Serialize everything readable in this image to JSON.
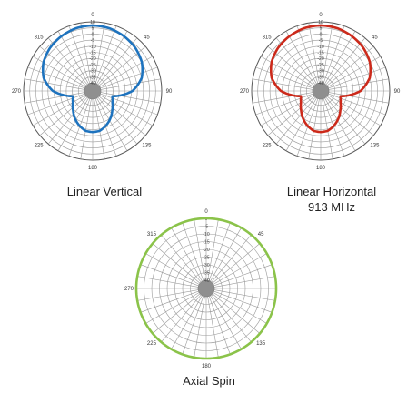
{
  "chart_data": [
    {
      "type": "polar-line",
      "title": "Linear Vertical",
      "subtitle": "",
      "series_color": "#1e73be",
      "radial_axis": {
        "ticks": [
          10,
          5,
          0,
          -5,
          -10,
          -15,
          -20,
          -25,
          -30,
          -35,
          -40
        ],
        "range": [
          -40,
          10
        ],
        "direction": "outer-to-inner"
      },
      "angular_axis": {
        "labels": [
          {
            "angle": 0,
            "label": "0"
          },
          {
            "angle": 45,
            "label": "45"
          },
          {
            "angle": 90,
            "label": "90"
          },
          {
            "angle": 135,
            "label": "135"
          },
          {
            "angle": 180,
            "label": "180"
          },
          {
            "angle": 225,
            "label": "225"
          },
          {
            "angle": 270,
            "label": "270"
          },
          {
            "angle": 315,
            "label": "315"
          }
        ]
      },
      "pattern": [
        [
          0,
          7
        ],
        [
          15,
          6.5
        ],
        [
          30,
          5
        ],
        [
          45,
          3
        ],
        [
          60,
          0
        ],
        [
          75,
          -5
        ],
        [
          90,
          -14
        ],
        [
          105,
          -30
        ],
        [
          120,
          -28
        ],
        [
          135,
          -24
        ],
        [
          150,
          -19
        ],
        [
          160,
          -16
        ],
        [
          170,
          -13.5
        ],
        [
          180,
          -13
        ],
        [
          190,
          -13.5
        ],
        [
          200,
          -16
        ],
        [
          210,
          -19
        ],
        [
          225,
          -24
        ],
        [
          240,
          -28
        ],
        [
          255,
          -30
        ],
        [
          270,
          -14
        ],
        [
          285,
          -5
        ],
        [
          300,
          0
        ],
        [
          315,
          3
        ],
        [
          330,
          5
        ],
        [
          345,
          6.5
        ]
      ]
    },
    {
      "type": "polar-line",
      "title": "Linear Horizontal",
      "subtitle": "913 MHz",
      "series_color": "#cc2a1b",
      "radial_axis": {
        "ticks": [
          10,
          5,
          0,
          -5,
          -10,
          -15,
          -20,
          -25,
          -30,
          -35,
          -40
        ],
        "range": [
          -40,
          10
        ],
        "direction": "outer-to-inner"
      },
      "angular_axis": {
        "labels": [
          {
            "angle": 0,
            "label": "0"
          },
          {
            "angle": 45,
            "label": "45"
          },
          {
            "angle": 90,
            "label": "90"
          },
          {
            "angle": 135,
            "label": "135"
          },
          {
            "angle": 180,
            "label": "180"
          },
          {
            "angle": 225,
            "label": "225"
          },
          {
            "angle": 270,
            "label": "270"
          },
          {
            "angle": 315,
            "label": "315"
          }
        ]
      },
      "pattern": [
        [
          0,
          7
        ],
        [
          15,
          6.5
        ],
        [
          30,
          5
        ],
        [
          45,
          3
        ],
        [
          60,
          0
        ],
        [
          75,
          -5
        ],
        [
          90,
          -14
        ],
        [
          105,
          -30
        ],
        [
          120,
          -28
        ],
        [
          135,
          -24
        ],
        [
          150,
          -19
        ],
        [
          160,
          -16
        ],
        [
          170,
          -13.5
        ],
        [
          180,
          -13
        ],
        [
          190,
          -13.5
        ],
        [
          200,
          -16
        ],
        [
          210,
          -19
        ],
        [
          225,
          -24
        ],
        [
          240,
          -28
        ],
        [
          255,
          -30
        ],
        [
          270,
          -14
        ],
        [
          285,
          -5
        ],
        [
          300,
          0
        ],
        [
          315,
          3
        ],
        [
          330,
          5
        ],
        [
          345,
          6.5
        ]
      ]
    },
    {
      "type": "polar-line",
      "title": "Axial Spin",
      "subtitle": "",
      "series_color": "#8bc34a",
      "radial_axis": {
        "ticks": [
          0,
          -5,
          -10,
          -15,
          -20,
          -25,
          -30,
          -35,
          -40
        ],
        "range": [
          -40,
          0
        ],
        "direction": "outer-to-inner"
      },
      "angular_axis": {
        "labels": [
          {
            "angle": 0,
            "label": "0"
          },
          {
            "angle": 45,
            "label": "45"
          },
          {
            "angle": 135,
            "label": "135"
          },
          {
            "angle": 180,
            "label": "180"
          },
          {
            "angle": 225,
            "label": "225"
          },
          {
            "angle": 270,
            "label": "270"
          },
          {
            "angle": 315,
            "label": "315"
          }
        ]
      },
      "pattern": [
        [
          0,
          0
        ],
        [
          45,
          0
        ],
        [
          90,
          0
        ],
        [
          135,
          0
        ],
        [
          180,
          0
        ],
        [
          225,
          0
        ],
        [
          270,
          0
        ],
        [
          315,
          0
        ]
      ]
    }
  ]
}
